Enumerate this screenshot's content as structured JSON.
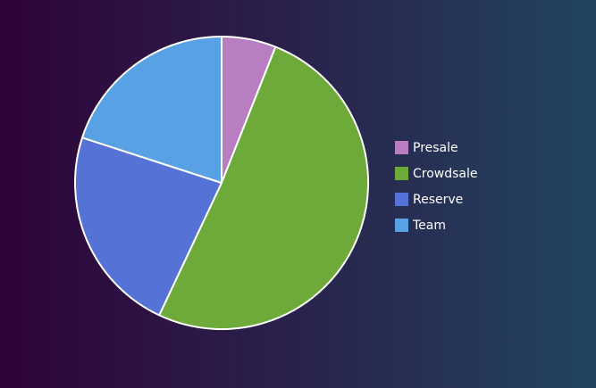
{
  "chart_data": {
    "type": "pie",
    "title": "",
    "series": [
      {
        "name": "Presale",
        "value": 6,
        "color": "#b97dc1"
      },
      {
        "name": "Crowdsale",
        "value": 51,
        "color": "#6eaa3a"
      },
      {
        "name": "Reserve",
        "value": 23,
        "color": "#5572d6"
      },
      {
        "name": "Team",
        "value": 20,
        "color": "#58a1e4"
      }
    ],
    "legend_position": "right",
    "slice_border_color": "#ffffff"
  }
}
